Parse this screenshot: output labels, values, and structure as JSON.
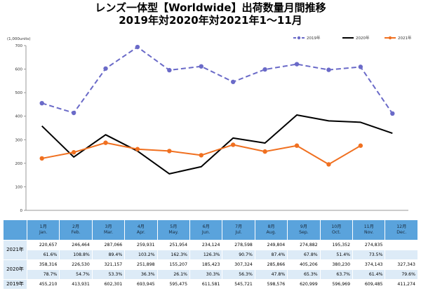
{
  "title": "レンズ一体型【Worldwide】出荷数量月間推移",
  "subtitle": "2019年対2020年対2021年1〜11月",
  "chart_data": {
    "type": "line",
    "unit_label": "(1,000units)",
    "ylim": [
      0,
      700
    ],
    "yticks": [
      0,
      100,
      200,
      300,
      400,
      500,
      600,
      700
    ],
    "grid": false,
    "legend_position": "top-right",
    "categories": [
      "1月",
      "2月",
      "3月",
      "4月",
      "5月",
      "6月",
      "7月",
      "8月",
      "9月",
      "10月",
      "11月",
      "12月"
    ],
    "series": [
      {
        "name": "2019年",
        "color": "#6a6ac8",
        "style": "dashed-markers",
        "values": [
          455.21,
          413.931,
          602.301,
          693.945,
          595.475,
          611.581,
          545.721,
          598.576,
          620.999,
          596.969,
          609.485,
          411.274
        ]
      },
      {
        "name": "2020年",
        "color": "#000000",
        "style": "solid",
        "values": [
          358.316,
          226.53,
          321.157,
          251.898,
          155.207,
          185.423,
          307.324,
          285.866,
          405.206,
          380.23,
          374.143,
          327.343
        ]
      },
      {
        "name": "2021年",
        "color": "#f07020",
        "style": "solid-markers",
        "values": [
          220.657,
          246.464,
          287.066,
          259.931,
          251.954,
          234.124,
          278.598,
          249.804,
          274.882,
          195.352,
          274.835,
          null
        ]
      }
    ]
  },
  "table": {
    "months": [
      {
        "jp": "1月",
        "en": "Jan."
      },
      {
        "jp": "2月",
        "en": "Feb."
      },
      {
        "jp": "3月",
        "en": "Mar."
      },
      {
        "jp": "4月",
        "en": "Apr."
      },
      {
        "jp": "5月",
        "en": "May."
      },
      {
        "jp": "6月",
        "en": "Jun."
      },
      {
        "jp": "7月",
        "en": "Jul."
      },
      {
        "jp": "8月",
        "en": "Aug."
      },
      {
        "jp": "9月",
        "en": "Sep."
      },
      {
        "jp": "10月",
        "en": "Oct."
      },
      {
        "jp": "11月",
        "en": "Nov."
      },
      {
        "jp": "12月",
        "en": "Dec."
      }
    ],
    "rows": [
      {
        "label": "2021年",
        "values": [
          "220,657",
          "246,464",
          "287,066",
          "259,931",
          "251,954",
          "234,124",
          "278,598",
          "249,804",
          "274,882",
          "195,352",
          "274,835",
          ""
        ],
        "pct": [
          "61.6%",
          "108.8%",
          "89.4%",
          "103.2%",
          "162.3%",
          "126.3%",
          "90.7%",
          "87.4%",
          "67.8%",
          "51.4%",
          "73.5%",
          ""
        ]
      },
      {
        "label": "2020年",
        "values": [
          "358,316",
          "226,530",
          "321,157",
          "251,898",
          "155,207",
          "185,423",
          "307,324",
          "285,866",
          "405,206",
          "380,230",
          "374,143",
          "327,343"
        ],
        "pct": [
          "78.7%",
          "54.7%",
          "53.3%",
          "36.3%",
          "26.1%",
          "30.3%",
          "56.3%",
          "47.8%",
          "65.3%",
          "63.7%",
          "61.4%",
          "79.6%"
        ]
      },
      {
        "label": "2019年",
        "values": [
          "455,210",
          "413,931",
          "602,301",
          "693,945",
          "595,475",
          "611,581",
          "545,721",
          "598,576",
          "620,999",
          "596,969",
          "609,485",
          "411,274"
        ],
        "pct": null
      }
    ]
  }
}
